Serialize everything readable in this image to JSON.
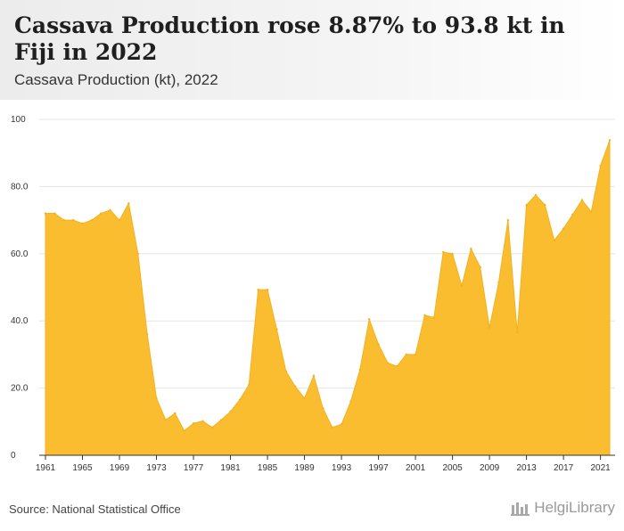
{
  "header": {
    "title": "Cassava Production rose 8.87% to 93.8 kt in Fiji in 2022",
    "subtitle": "Cassava Production (kt), 2022"
  },
  "footer": {
    "source": "Source: National Statistical Office",
    "brand": "HelgiLibrary"
  },
  "colors": {
    "area_fill": "#fbbd30",
    "area_stroke": "#f2b21e",
    "grid": "#e6e6e6",
    "axis": "#333333"
  },
  "chart_data": {
    "type": "area",
    "title": "Cassava Production rose 8.87% to 93.8 kt in Fiji in 2022",
    "subtitle": "Cassava Production (kt), 2022",
    "xlabel": "",
    "ylabel": "",
    "ylim": [
      0,
      100
    ],
    "yticks": [
      0,
      20,
      40,
      60,
      80,
      100
    ],
    "ytick_labels": [
      "0",
      "20.0",
      "40.0",
      "60.0",
      "80.0",
      "100"
    ],
    "xticks": [
      1961,
      1965,
      1969,
      1973,
      1977,
      1981,
      1985,
      1989,
      1993,
      1997,
      2001,
      2005,
      2009,
      2013,
      2017,
      2021
    ],
    "grid": true,
    "legend": "none",
    "x": [
      1961,
      1962,
      1963,
      1964,
      1965,
      1966,
      1967,
      1968,
      1969,
      1970,
      1971,
      1972,
      1973,
      1974,
      1975,
      1976,
      1977,
      1978,
      1979,
      1980,
      1981,
      1982,
      1983,
      1984,
      1985,
      1986,
      1987,
      1988,
      1989,
      1990,
      1991,
      1992,
      1993,
      1994,
      1995,
      1996,
      1997,
      1998,
      1999,
      2000,
      2001,
      2002,
      2003,
      2004,
      2005,
      2006,
      2007,
      2008,
      2009,
      2010,
      2011,
      2012,
      2013,
      2014,
      2015,
      2016,
      2017,
      2018,
      2019,
      2020,
      2021,
      2022
    ],
    "series": [
      {
        "values": [
          72,
          72,
          70,
          70,
          69,
          70,
          72,
          73,
          70,
          75,
          60,
          36,
          17,
          10.5,
          12.5,
          7.3,
          9.5,
          10.2,
          8.3,
          10.5,
          13,
          16.5,
          21,
          49.3,
          49.3,
          37.5,
          25,
          20.5,
          17,
          23.7,
          14,
          8.3,
          9.2,
          16,
          25.5,
          40.5,
          33,
          27.5,
          26.5,
          30,
          30,
          41.7,
          41,
          60.5,
          60,
          50.5,
          61.5,
          56,
          38,
          51.5,
          70,
          36.5,
          74.5,
          77.5,
          74.5,
          64,
          67.5,
          71.7,
          76,
          72.5,
          86.2,
          93.8
        ]
      }
    ]
  }
}
